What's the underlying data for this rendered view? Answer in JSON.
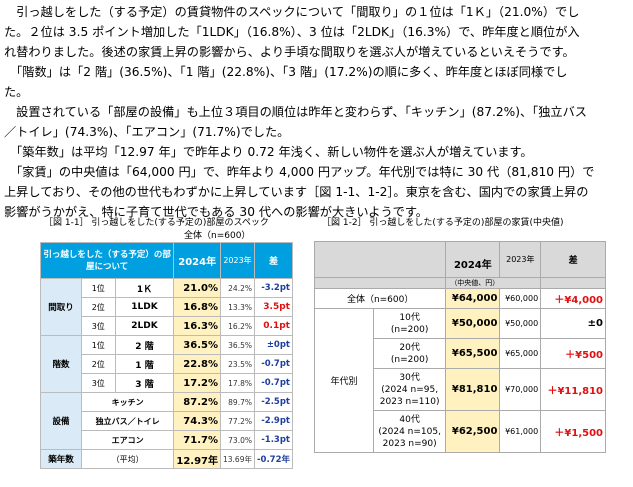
{
  "paragraphs": [
    [
      "　引っ越しをした（する予定）の賃貸物件のスペックについて「間取り」の１位は「1Ｋ」（21.0%）でし",
      "た。２位は 3.5 ポイント増加した「1LDK」（16.8%）、3 位は「2LDK」（16.3%）で、昨年度と順位が入",
      "れ替わりました。後述の家賃上昇の影響から、より手頃な間取りを選ぶ人が増えているといえそうです。"
    ],
    [
      "　「階数」は「2 階」(36.5%)、「1 階」(22.8%)、「3 階」(17.2%)の順に多く、昨年度とほぼ同様でし",
      "た。"
    ],
    [
      "　設置されている「部屋の設備」も上位３項目の順位は昨年と変わらず、「キッチン」(87.2%)、「独立バス",
      "／トイレ」(74.3%)、「エアコン」(71.7%)でした。"
    ],
    [
      "　「築年数」は平均「12.97 年」で昨年より 0.72 年浅く、新しい物件を選ぶ人が増えています。"
    ],
    [
      "　「家賃」の中央値は「64,000 円」で、昨年より 4,000 円アップ。年代別では特に 30 代（81,810 円）で",
      "上昇しており、その他の世代もわずかに上昇しています［図 1-1、1-2］。東京を含む、国内での家賃上昇の",
      "影響がうかがえ、特に子育て世代でもある 30 代への影響が大きいようです。"
    ]
  ],
  "fig1": {
    "caption": "［図 1-1］ 引っ越しをした(する予定の)部屋のスペック",
    "subtitle": "全体（n=600）",
    "header": {
      "label": "引っ越しをした（する予定）の部屋について",
      "c2024": "2024年",
      "c2023": "2023年",
      "diff": "差"
    },
    "groups": [
      {
        "name": "間取り",
        "rows": [
          {
            "rank": "1位",
            "item": "1Ｋ",
            "v2024": "21.0%",
            "v2023": "24.2%",
            "diff": "-3.2pt",
            "sign": "neg"
          },
          {
            "rank": "2位",
            "item": "1LDK",
            "v2024": "16.8%",
            "v2023": "13.3%",
            "diff": "3.5pt",
            "sign": "pos"
          },
          {
            "rank": "3位",
            "item": "2LDK",
            "v2024": "16.3%",
            "v2023": "16.2%",
            "diff": "0.1pt",
            "sign": "pos"
          }
        ]
      },
      {
        "name": "階数",
        "rows": [
          {
            "rank": "1位",
            "item": "2 階",
            "v2024": "36.5%",
            "v2023": "36.5%",
            "diff": "±0pt",
            "sign": "neg"
          },
          {
            "rank": "2位",
            "item": "1 階",
            "v2024": "22.8%",
            "v2023": "23.5%",
            "diff": "-0.7pt",
            "sign": "neg"
          },
          {
            "rank": "3位",
            "item": "3 階",
            "v2024": "17.2%",
            "v2023": "17.8%",
            "diff": "-0.7pt",
            "sign": "neg"
          }
        ]
      },
      {
        "name": "設備",
        "rows": [
          {
            "rank": "",
            "item": "キッチン",
            "v2024": "87.2%",
            "v2023": "89.7%",
            "diff": "-2.5pt",
            "sign": "neg"
          },
          {
            "rank": "",
            "item": "独立バス／トイレ",
            "v2024": "74.3%",
            "v2023": "77.2%",
            "diff": "-2.9pt",
            "sign": "neg"
          },
          {
            "rank": "",
            "item": "エアコン",
            "v2024": "71.7%",
            "v2023": "73.0%",
            "diff": "-1.3pt",
            "sign": "neg"
          }
        ]
      }
    ],
    "age": {
      "name": "築年数",
      "item": "（平均）",
      "v2024": "12.97年",
      "v2023": "13.69年",
      "diff": "-0.72年"
    }
  },
  "fig2": {
    "caption": "［図 1-2］ 引っ越しをした(する予定の)部屋の家賃(中央値)",
    "header": {
      "c2024": "2024年",
      "c2023": "2023年",
      "unit": "（中央値、円）",
      "diff": "差"
    },
    "overall": {
      "label": "全体（n=600）",
      "v2024": "¥64,000",
      "v2023": "¥60,000",
      "diff": "＋¥4,000"
    },
    "group_label": "年代別",
    "ages": [
      {
        "label1": "10代",
        "label2": "(n=200)",
        "v2024": "¥50,000",
        "v2023": "¥50,000",
        "diff": "±0"
      },
      {
        "label1": "20代",
        "label2": "(n=200)",
        "v2024": "¥65,500",
        "v2023": "¥65,000",
        "diff": "＋¥500"
      },
      {
        "label1": "30代",
        "label2": "(2024 n=95,",
        "label3": "2023 n=110)",
        "v2024": "¥81,810",
        "v2023": "¥70,000",
        "diff": "＋¥11,810"
      },
      {
        "label1": "40代",
        "label2": "(2024 n=105,",
        "label3": "2023 n=90)",
        "v2024": "¥62,500",
        "v2023": "¥61,000",
        "diff": "＋¥1,500"
      }
    ]
  }
}
